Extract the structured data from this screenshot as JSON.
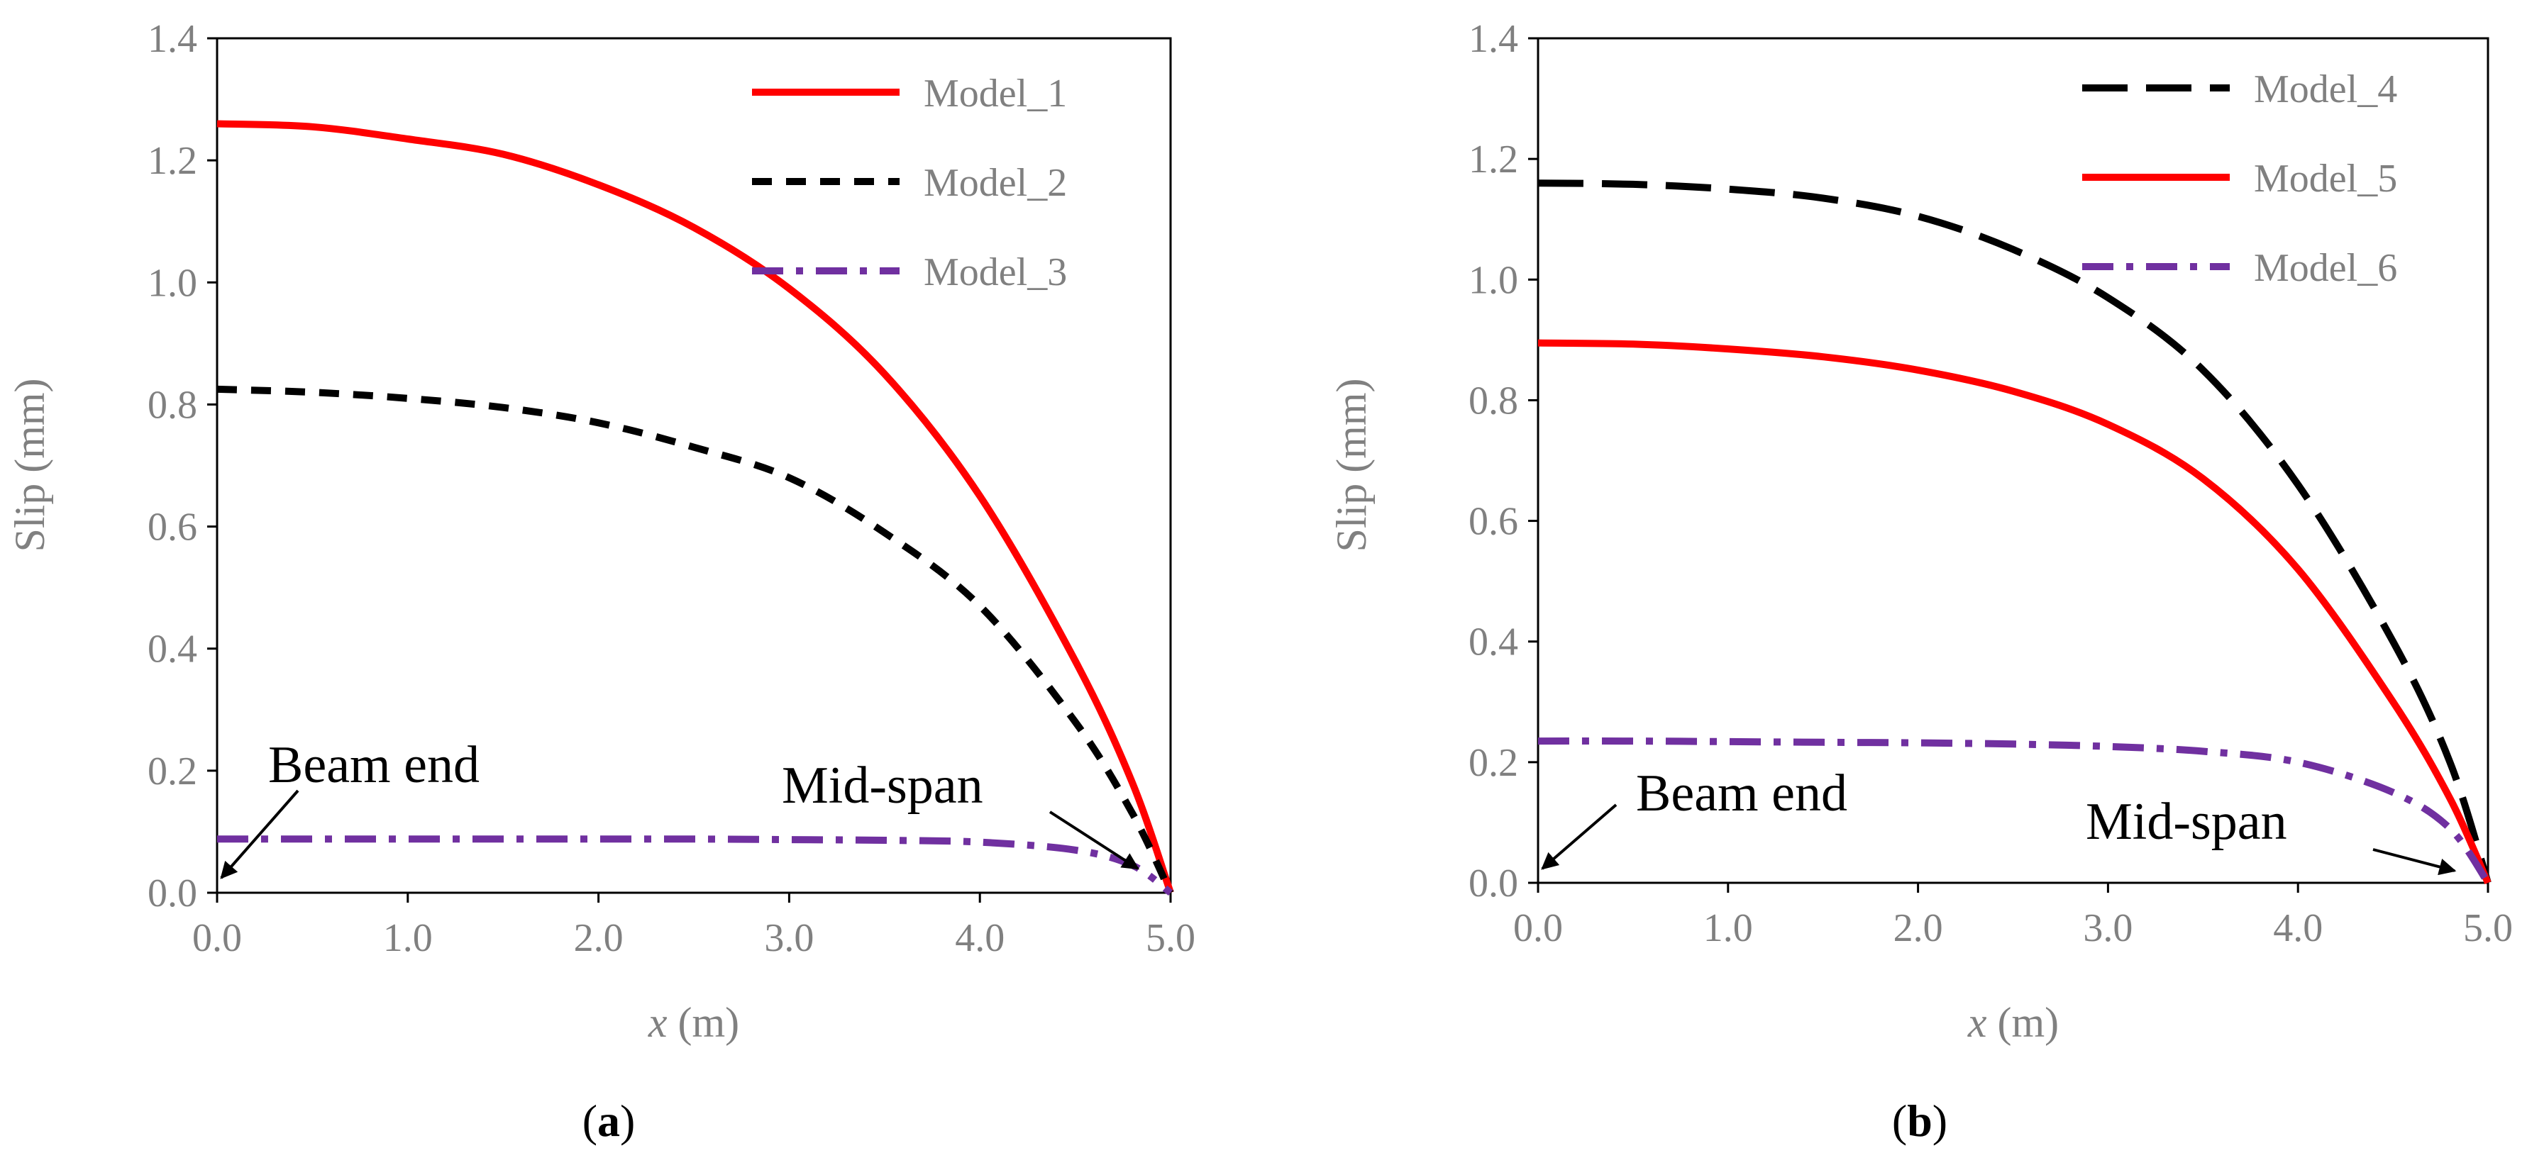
{
  "chart_data": [
    {
      "type": "line",
      "panel": "(a)",
      "panel_letter": "a",
      "xlabel_var": "x",
      "xlabel_unit": " (m)",
      "ylabel": "Slip (mm)",
      "xlim": [
        0,
        5
      ],
      "ylim": [
        0,
        1.4
      ],
      "xticks": [
        "0.0",
        "1.0",
        "2.0",
        "3.0",
        "4.0",
        "5.0"
      ],
      "yticks": [
        "0.0",
        "0.2",
        "0.4",
        "0.6",
        "0.8",
        "1.0",
        "1.2",
        "1.4"
      ],
      "legend_position": "top-right",
      "series": [
        {
          "name": "Model_1",
          "color": "#ff0000",
          "style": "solid",
          "x": [
            0,
            0.5,
            1.0,
            1.5,
            2.0,
            2.5,
            3.0,
            3.5,
            4.0,
            4.5,
            4.8,
            5.0
          ],
          "y": [
            1.26,
            1.255,
            1.235,
            1.21,
            1.16,
            1.09,
            0.99,
            0.85,
            0.65,
            0.38,
            0.18,
            0.0
          ]
        },
        {
          "name": "Model_2",
          "color": "#000000",
          "style": "dash",
          "x": [
            0,
            0.5,
            1.0,
            1.5,
            2.0,
            2.5,
            3.0,
            3.5,
            4.0,
            4.5,
            4.8,
            5.0
          ],
          "y": [
            0.825,
            0.82,
            0.81,
            0.795,
            0.77,
            0.73,
            0.68,
            0.59,
            0.47,
            0.28,
            0.13,
            0.0
          ]
        },
        {
          "name": "Model_3",
          "color": "#7030a0",
          "style": "dashdot",
          "x": [
            0,
            0.5,
            1.0,
            1.5,
            2.0,
            2.5,
            3.0,
            3.5,
            4.0,
            4.5,
            4.8,
            5.0
          ],
          "y": [
            0.088,
            0.088,
            0.088,
            0.088,
            0.088,
            0.088,
            0.087,
            0.086,
            0.083,
            0.07,
            0.045,
            0.0
          ]
        }
      ],
      "annotations": [
        {
          "text": "Beam end"
        },
        {
          "text": "Mid-span"
        }
      ]
    },
    {
      "type": "line",
      "panel": "(b)",
      "panel_letter": "b",
      "xlabel_var": "x",
      "xlabel_unit": " (m)",
      "ylabel": "Slip (mm)",
      "xlim": [
        0,
        5
      ],
      "ylim": [
        0,
        1.4
      ],
      "xticks": [
        "0.0",
        "1.0",
        "2.0",
        "3.0",
        "4.0",
        "5.0"
      ],
      "yticks": [
        "0.0",
        "0.2",
        "0.4",
        "0.6",
        "0.8",
        "1.0",
        "1.2",
        "1.4"
      ],
      "legend_position": "top-right",
      "series": [
        {
          "name": "Model_4",
          "color": "#000000",
          "style": "longdash",
          "x": [
            0,
            0.5,
            1.0,
            1.5,
            2.0,
            2.5,
            3.0,
            3.5,
            4.0,
            4.5,
            4.8,
            5.0
          ],
          "y": [
            1.16,
            1.158,
            1.15,
            1.135,
            1.105,
            1.05,
            0.97,
            0.85,
            0.66,
            0.4,
            0.2,
            0.0
          ]
        },
        {
          "name": "Model_5",
          "color": "#ff0000",
          "style": "solid",
          "x": [
            0,
            0.5,
            1.0,
            1.5,
            2.0,
            2.5,
            3.0,
            3.5,
            4.0,
            4.5,
            4.8,
            5.0
          ],
          "y": [
            0.895,
            0.893,
            0.885,
            0.872,
            0.85,
            0.815,
            0.76,
            0.67,
            0.52,
            0.3,
            0.14,
            0.0
          ]
        },
        {
          "name": "Model_6",
          "color": "#7030a0",
          "style": "dashdot",
          "x": [
            0,
            0.5,
            1.0,
            1.5,
            2.0,
            2.5,
            3.0,
            3.5,
            4.0,
            4.5,
            4.8,
            5.0
          ],
          "y": [
            0.235,
            0.235,
            0.234,
            0.233,
            0.232,
            0.23,
            0.226,
            0.218,
            0.2,
            0.15,
            0.09,
            0.0
          ]
        }
      ],
      "annotations": [
        {
          "text": "Beam end"
        },
        {
          "text": "Mid-span"
        }
      ]
    }
  ]
}
